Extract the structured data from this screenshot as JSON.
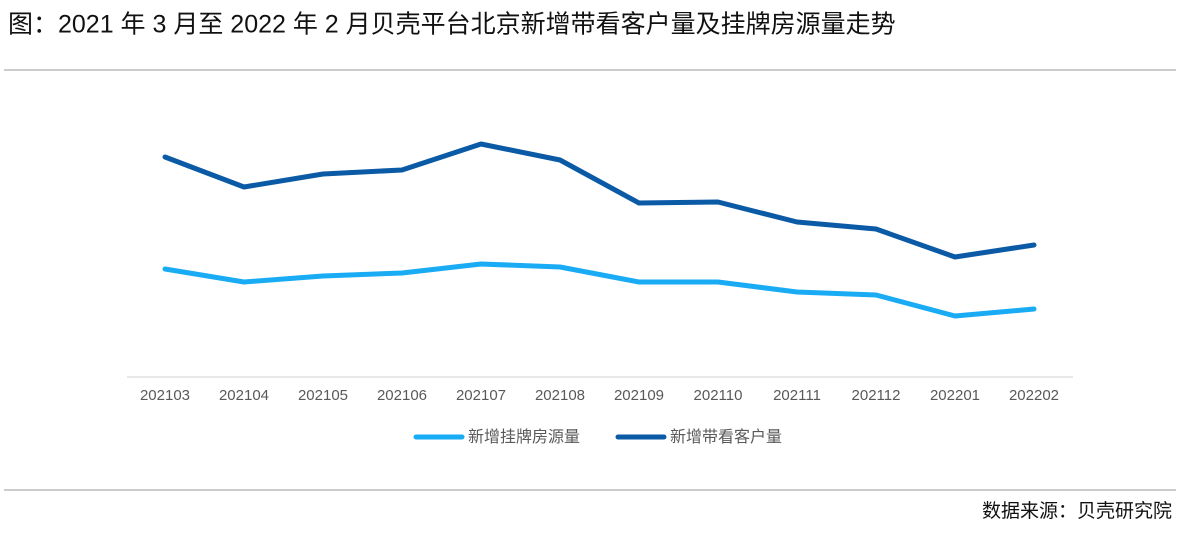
{
  "chart_data": {
    "type": "line",
    "title": "图：2021 年 3 月至 2022 年 2 月贝壳平台北京新增带看客户量及挂牌房源量走势",
    "source": "数据来源：贝壳研究院",
    "categories": [
      "202103",
      "202104",
      "202105",
      "202106",
      "202107",
      "202108",
      "202109",
      "202110",
      "202111",
      "202112",
      "202201",
      "202202"
    ],
    "series": [
      {
        "name": "新增挂牌房源量",
        "color": "#1aabf5",
        "values": [
          108,
          95,
          101,
          104,
          113,
          110,
          95,
          95,
          85,
          82,
          61,
          68
        ]
      },
      {
        "name": "新增带看客户量",
        "color": "#0b5aa6",
        "values": [
          220,
          190,
          203,
          207,
          233,
          217,
          174,
          175,
          155,
          148,
          120,
          132
        ]
      }
    ]
  }
}
